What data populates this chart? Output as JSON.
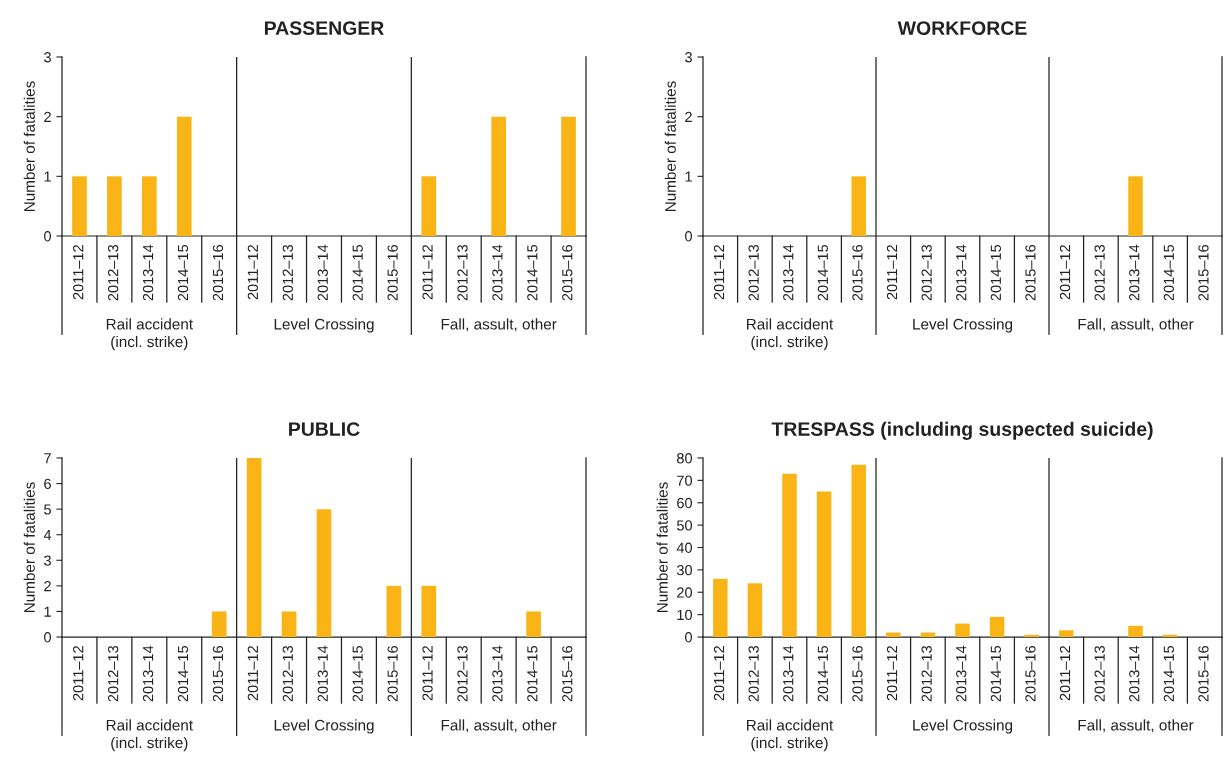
{
  "chart_data": [
    {
      "type": "bar",
      "title": "PASSENGER",
      "ylabel": "Number of fatalities",
      "categories": [
        "2011–12",
        "2012–13",
        "2013–14",
        "2014–15",
        "2015–16",
        "2011–12",
        "2012–13",
        "2013–14",
        "2014–15",
        "2015–16",
        "2011–12",
        "2012–13",
        "2013–14",
        "2014–15",
        "2015–16"
      ],
      "values": [
        1,
        1,
        1,
        2,
        0,
        0,
        0,
        0,
        0,
        0,
        1,
        0,
        2,
        0,
        2
      ],
      "color": "#fbb416",
      "ylim": [
        0,
        3
      ],
      "yticks": [
        0,
        1,
        2,
        3
      ],
      "grid": false,
      "annotations": [
        "Rail accident\n(incl. strike)",
        "Level Crossing",
        "Fall, assult, other"
      ]
    },
    {
      "type": "bar",
      "title": "WORKFORCE",
      "ylabel": "Number of fatalities",
      "categories": [
        "2011–12",
        "2012–13",
        "2013–14",
        "2014–15",
        "2015–16",
        "2011–12",
        "2012–13",
        "2013–14",
        "2014–15",
        "2015–16",
        "2011–12",
        "2012–13",
        "2013–14",
        "2014–15",
        "2015–16"
      ],
      "values": [
        0,
        0,
        0,
        0,
        1,
        0,
        0,
        0,
        0,
        0,
        0,
        0,
        1,
        0,
        0
      ],
      "color": "#fbb416",
      "ylim": [
        0,
        3
      ],
      "yticks": [
        0,
        1,
        2,
        3
      ],
      "grid": false,
      "annotations": [
        "Rail accident\n(incl. strike)",
        "Level Crossing",
        "Fall, assult, other"
      ]
    },
    {
      "type": "bar",
      "title": "PUBLIC",
      "ylabel": "Number of fatalities",
      "categories": [
        "2011–12",
        "2012–13",
        "2013–14",
        "2014–15",
        "2015–16",
        "2011–12",
        "2012–13",
        "2013–14",
        "2014–15",
        "2015–16",
        "2011–12",
        "2012–13",
        "2013–14",
        "2014–15",
        "2015–16"
      ],
      "values": [
        0,
        0,
        0,
        0,
        1,
        7,
        1,
        5,
        0,
        2,
        2,
        0,
        0,
        1,
        0
      ],
      "color": "#fbb416",
      "ylim": [
        0,
        7
      ],
      "yticks": [
        0,
        1,
        2,
        3,
        4,
        5,
        6,
        7
      ],
      "grid": false,
      "annotations": [
        "Rail accident\n(incl. strike)",
        "Level Crossing",
        "Fall, assult, other"
      ]
    },
    {
      "type": "bar",
      "title": "TRESPASS (including suspected suicide)",
      "ylabel": "Number of fatalities",
      "categories": [
        "2011–12",
        "2012–13",
        "2013–14",
        "2014–15",
        "2015–16",
        "2011–12",
        "2012–13",
        "2013–14",
        "2014–15",
        "2015–16",
        "2011–12",
        "2012–13",
        "2013–14",
        "2014–15",
        "2015–16"
      ],
      "values": [
        26,
        24,
        73,
        65,
        77,
        2,
        2,
        6,
        9,
        1,
        3,
        0,
        5,
        1,
        0
      ],
      "color": "#fbb416",
      "ylim": [
        0,
        80
      ],
      "yticks": [
        0,
        10,
        20,
        30,
        40,
        50,
        60,
        70,
        80
      ],
      "grid": false,
      "annotations": [
        "Rail accident\n(incl. strike)",
        "Level Crossing",
        "Fall, assult, other"
      ]
    }
  ]
}
